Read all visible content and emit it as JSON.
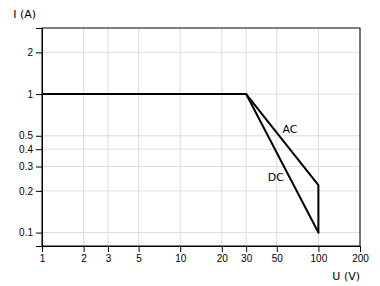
{
  "chart_data": {
    "type": "line",
    "xlabel": "U (V)",
    "ylabel": "I (A)",
    "log": true,
    "grid": true,
    "xlim": [
      1,
      200
    ],
    "ylim": [
      0.08,
      3.0
    ],
    "xticks": [
      1,
      2,
      3,
      5,
      10,
      20,
      30,
      50,
      100,
      200
    ],
    "yticks": [
      0.1,
      0.2,
      0.3,
      0.4,
      0.5,
      1,
      2
    ],
    "series": [
      {
        "color": "#000000",
        "x": [
          1,
          30,
          100
        ],
        "values": [
          1.0,
          1.0,
          0.1
        ]
      },
      {
        "color": "#000000",
        "x": [
          1,
          30,
          100,
          100
        ],
        "values": [
          1.0,
          1.0,
          0.22,
          0.1
        ]
      }
    ],
    "annotations": [
      {
        "text": "AC",
        "x": 55,
        "y": 0.52
      },
      {
        "text": "DC",
        "x": 43,
        "y": 0.235
      }
    ]
  }
}
